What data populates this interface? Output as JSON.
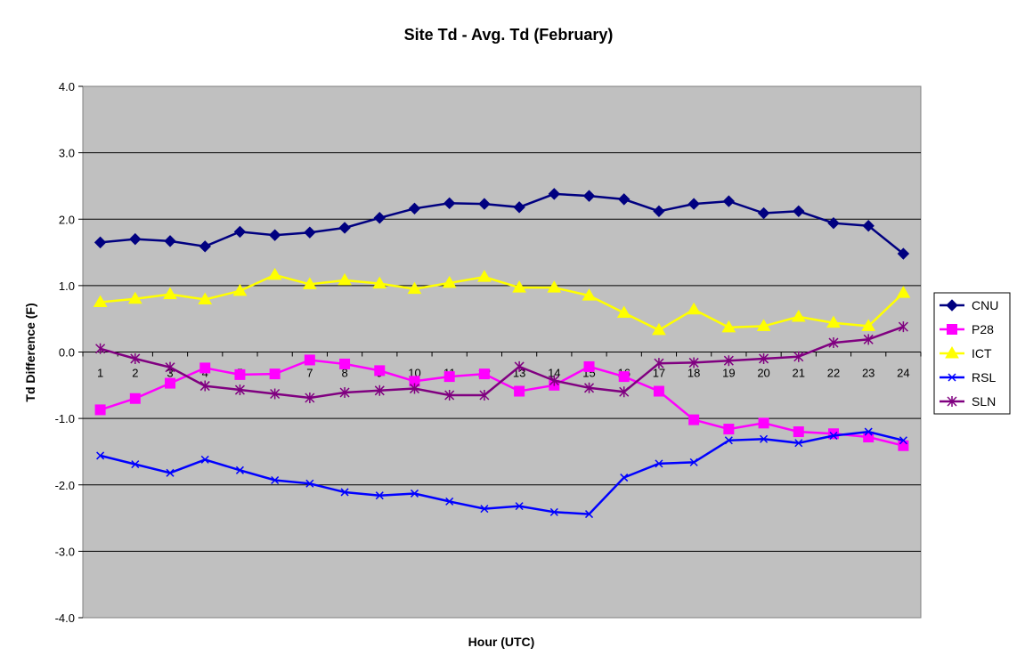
{
  "chart_data": {
    "type": "line",
    "title": "Site Td - Avg. Td (February)",
    "xlabel": "Hour (UTC)",
    "ylabel": "Td Difference (F)",
    "ylim": [
      -4.0,
      4.0
    ],
    "y_ticks": [
      "4.0",
      "3.0",
      "2.0",
      "1.0",
      "0.0",
      "-1.0",
      "-2.0",
      "-3.0",
      "-4.0"
    ],
    "y_tick_values": [
      4,
      3,
      2,
      1,
      0,
      -1,
      -2,
      -3,
      -4
    ],
    "categories": [
      "1",
      "2",
      "3",
      "4",
      "5",
      "6",
      "7",
      "8",
      "9",
      "10",
      "11",
      "12",
      "13",
      "14",
      "15",
      "16",
      "17",
      "18",
      "19",
      "20",
      "21",
      "22",
      "23",
      "24"
    ],
    "grid": true,
    "plot_background": "#c0c0c0",
    "legend_position": "right",
    "series": [
      {
        "name": "CNU",
        "color": "#000080",
        "marker": "diamond",
        "values": [
          1.65,
          1.7,
          1.67,
          1.59,
          1.81,
          1.76,
          1.8,
          1.87,
          2.02,
          2.16,
          2.24,
          2.23,
          2.18,
          2.38,
          2.35,
          2.3,
          2.12,
          2.23,
          2.27,
          2.09,
          2.12,
          1.94,
          1.9,
          1.48
        ]
      },
      {
        "name": "P28",
        "color": "#ff00ff",
        "marker": "square",
        "values": [
          -0.87,
          -0.7,
          -0.47,
          -0.24,
          -0.34,
          -0.33,
          -0.12,
          -0.18,
          -0.28,
          -0.44,
          -0.37,
          -0.33,
          -0.59,
          -0.5,
          -0.22,
          -0.37,
          -0.59,
          -1.02,
          -1.16,
          -1.07,
          -1.2,
          -1.23,
          -1.28,
          -1.41
        ]
      },
      {
        "name": "ICT",
        "color": "#ffff00",
        "marker": "triangle",
        "values": [
          0.75,
          0.8,
          0.87,
          0.79,
          0.92,
          1.16,
          1.02,
          1.08,
          1.03,
          0.95,
          1.04,
          1.13,
          0.97,
          0.97,
          0.85,
          0.59,
          0.33,
          0.64,
          0.37,
          0.39,
          0.53,
          0.44,
          0.39,
          0.89
        ]
      },
      {
        "name": "RSL",
        "color": "#0000ff",
        "marker": "x",
        "values": [
          -1.56,
          -1.69,
          -1.82,
          -1.62,
          -1.78,
          -1.93,
          -1.98,
          -2.11,
          -2.16,
          -2.13,
          -2.25,
          -2.36,
          -2.32,
          -2.41,
          -2.44,
          -1.89,
          -1.68,
          -1.66,
          -1.33,
          -1.31,
          -1.37,
          -1.26,
          -1.2,
          -1.33
        ]
      },
      {
        "name": "SLN",
        "color": "#800080",
        "marker": "star",
        "values": [
          0.05,
          -0.1,
          -0.23,
          -0.51,
          -0.57,
          -0.63,
          -0.69,
          -0.61,
          -0.58,
          -0.55,
          -0.65,
          -0.65,
          -0.22,
          -0.43,
          -0.54,
          -0.6,
          -0.17,
          -0.16,
          -0.13,
          -0.1,
          -0.07,
          0.14,
          0.19,
          0.38
        ]
      }
    ]
  }
}
